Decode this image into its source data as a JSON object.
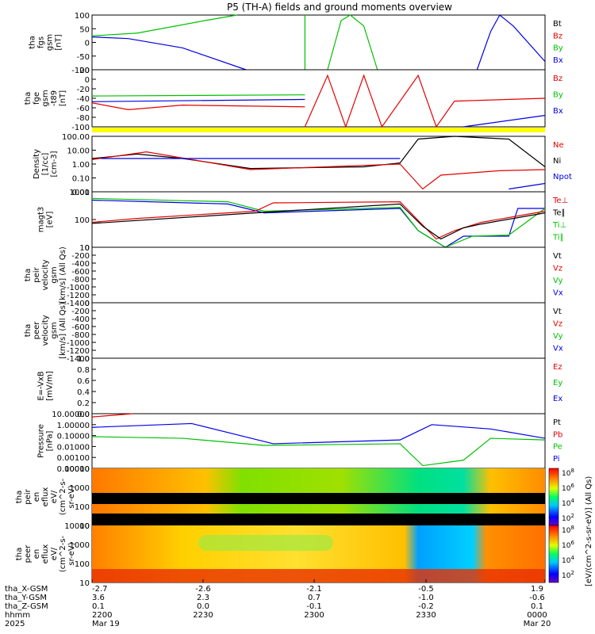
{
  "title": "P5 (TH-A) fields and ground moments overview",
  "colors": {
    "black": "#000000",
    "red": "#e60000",
    "green": "#00c000",
    "blue": "#0000e6",
    "yellow": "#ffff00"
  },
  "chart_data": [
    {
      "id": "fgs",
      "type": "line",
      "ylabel": [
        "tha",
        "fgs",
        "gsm",
        "[nT]"
      ],
      "ylim": [
        -100,
        100
      ],
      "ticks": [
        "100",
        "50",
        "0",
        "-50",
        "-100"
      ],
      "legend": [
        "Bt",
        "Bz",
        "By",
        "Bx"
      ]
    },
    {
      "id": "fge",
      "type": "line",
      "ylabel": [
        "tha",
        "fge",
        "gsm",
        "-t89",
        "[nT]"
      ],
      "ylim": [
        -120,
        20
      ],
      "ticks": [
        "20",
        "0",
        "-20",
        "-40",
        "-60",
        "-80",
        "-100"
      ],
      "legend": [
        "Bz",
        "By",
        "Bx"
      ]
    },
    {
      "id": "density",
      "type": "line",
      "ylabel": [
        "Density",
        "[1/cc]",
        "[cm-3]"
      ],
      "scale": "log",
      "ticks": [
        "100.00",
        "10.00",
        "1.00",
        "0.10",
        "0.01"
      ],
      "legend": [
        "Ne",
        "Ni",
        "Npot"
      ]
    },
    {
      "id": "temperature",
      "type": "line",
      "ylabel": [
        "magt3",
        "[eV]"
      ],
      "scale": "log",
      "ticks": [
        "1000",
        "100",
        "10"
      ],
      "legend": [
        "Te⊥",
        "Te∥",
        "Ti⊥",
        "Ti∥"
      ]
    },
    {
      "id": "peir_velocity",
      "type": "line",
      "ylabel": [
        "tha",
        "peir",
        "velocity",
        "gsm",
        "[km/s] (All Qs)"
      ],
      "ylim": [
        -1400,
        0
      ],
      "ticks": [
        "0",
        "-200",
        "-400",
        "-600",
        "-800",
        "-1000",
        "-1200",
        "-1400"
      ],
      "legend": [
        "Vt",
        "Vz",
        "Vy",
        "Vx"
      ]
    },
    {
      "id": "peer_velocity",
      "type": "line",
      "ylabel": [
        "tha",
        "peer",
        "velocity",
        "gsm",
        "[km/s] (All Qs)"
      ],
      "ylim": [
        -1400,
        0
      ],
      "ticks": [
        "0",
        "-200",
        "-400",
        "-600",
        "-800",
        "-1000",
        "-1200",
        "-1400"
      ],
      "legend": [
        "Vt",
        "Vz",
        "Vy",
        "Vx"
      ]
    },
    {
      "id": "efield",
      "type": "line",
      "ylabel": [
        "E=-VxB",
        "[mV/m]"
      ],
      "ylim": [
        0,
        1
      ],
      "ticks": [
        "1.0",
        "0.8",
        "0.6",
        "0.4",
        "0.2",
        "0.0"
      ],
      "legend": [
        "Ez",
        "Ey",
        "Ex"
      ]
    },
    {
      "id": "pressure",
      "type": "line",
      "ylabel": [
        "Pressure",
        "[nPa]"
      ],
      "scale": "log",
      "ticks": [
        "10.00000",
        "1.00000",
        "0.10000",
        "0.01000",
        "0.00100",
        "0.00010"
      ],
      "legend": [
        "Pt",
        "Pb",
        "Pe",
        "Pi"
      ]
    },
    {
      "id": "peir_spec",
      "type": "heatmap",
      "ylabel": [
        "tha",
        "peir",
        "en",
        "eflux",
        "eV/",
        "(cm^2-s-",
        "sr-eV)"
      ],
      "ticks": [
        "10000",
        "1000",
        "100",
        "10"
      ]
    },
    {
      "id": "peer_spec",
      "type": "heatmap",
      "ylabel": [
        "tha",
        "peer",
        "en",
        "eflux",
        "eV/",
        "(cm^2-s-",
        "sr-eV)"
      ],
      "ticks": [
        "10000",
        "1000",
        "100",
        "10"
      ]
    }
  ],
  "colorbar": {
    "label": "[eV/(cm^2-s-sr-eV)] (All Qs)",
    "ticks_top": [
      "10^8",
      "10^6",
      "10^4",
      "10^2"
    ],
    "ticks_bottom": [
      "10^8",
      "10^6",
      "10^4",
      "10^2"
    ]
  },
  "x_axis": {
    "row_labels": [
      "tha_X-GSM",
      "tha_Y-GSM",
      "tha_Z-GSM",
      "hhmm",
      "2025"
    ],
    "columns": [
      [
        "-2.7",
        "3.6",
        "0.1",
        "2200",
        "Mar 19"
      ],
      [
        "-2.6",
        "2.3",
        "0.0",
        "2230",
        ""
      ],
      [
        "-2.1",
        "0.7",
        "-0.1",
        "2300",
        ""
      ],
      [
        "-0.5",
        "-1.0",
        "-0.2",
        "2330",
        ""
      ],
      [
        "1.9",
        "-0.6",
        "0.1",
        "0000",
        "Mar 20"
      ]
    ]
  }
}
